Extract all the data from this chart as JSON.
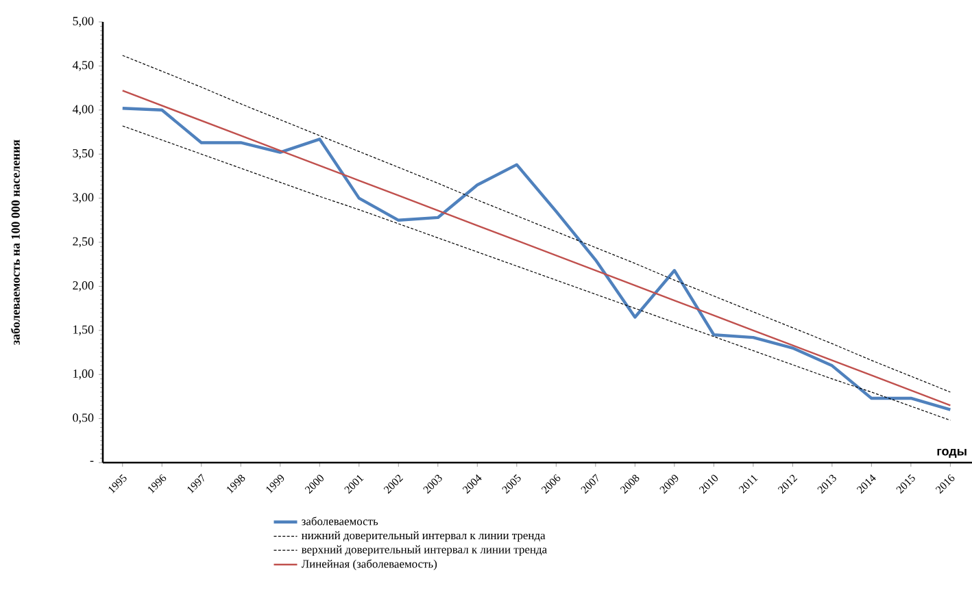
{
  "chart_data": {
    "type": "line",
    "ylabel": "заболеваемость на 100 000 населения",
    "xlabel": "годы",
    "categories": [
      "1995",
      "1996",
      "1997",
      "1998",
      "1999",
      "2000",
      "2001",
      "2002",
      "2003",
      "2004",
      "2005",
      "2006",
      "2007",
      "2008",
      "2009",
      "2010",
      "2011",
      "2012",
      "2013",
      "2014",
      "2015",
      "2016"
    ],
    "ylim": [
      0,
      5
    ],
    "yticks": [
      {
        "value": 0,
        "label": "-"
      },
      {
        "value": 0.5,
        "label": "0,50"
      },
      {
        "value": 1,
        "label": "1,00"
      },
      {
        "value": 1.5,
        "label": "1,50"
      },
      {
        "value": 2,
        "label": "2,00"
      },
      {
        "value": 2.5,
        "label": "2,50"
      },
      {
        "value": 3,
        "label": "3,00"
      },
      {
        "value": 3.5,
        "label": "3,50"
      },
      {
        "value": 4,
        "label": "4,00"
      },
      {
        "value": 4.5,
        "label": "4,50"
      },
      {
        "value": 5,
        "label": "5,00"
      }
    ],
    "series": [
      {
        "name": "заболеваемость",
        "color": "#4f81bd",
        "line_style": "solid",
        "values": [
          4.02,
          4.0,
          3.63,
          3.63,
          3.52,
          3.67,
          3.0,
          2.75,
          2.78,
          3.15,
          3.38,
          2.85,
          2.3,
          1.65,
          2.18,
          1.45,
          1.42,
          1.3,
          1.1,
          0.73,
          0.73,
          0.6
        ]
      },
      {
        "name": "нижний доверительный интервал к линии тренда",
        "type": "line",
        "color": "#000000",
        "line_style": "dashed",
        "values": [
          3.82,
          3.66,
          3.5,
          3.34,
          3.18,
          3.02,
          2.87,
          2.71,
          2.55,
          2.39,
          2.23,
          2.07,
          1.91,
          1.75,
          1.59,
          1.43,
          1.27,
          1.11,
          0.95,
          0.8,
          0.64,
          0.48
        ]
      },
      {
        "name": "верхний доверительный интервал к линии тренда",
        "type": "line",
        "color": "#000000",
        "line_style": "dashed",
        "values": [
          4.62,
          4.44,
          4.26,
          4.07,
          3.89,
          3.71,
          3.53,
          3.35,
          3.17,
          2.98,
          2.8,
          2.62,
          2.44,
          2.26,
          2.07,
          1.89,
          1.71,
          1.53,
          1.35,
          1.16,
          0.98,
          0.8
        ]
      },
      {
        "name": "Линейная (заболеваемость)",
        "type": "line",
        "color": "#c0504d",
        "line_style": "solid",
        "values": [
          4.22,
          4.05,
          3.88,
          3.71,
          3.54,
          3.37,
          3.2,
          3.03,
          2.86,
          2.69,
          2.52,
          2.35,
          2.18,
          2.01,
          1.84,
          1.67,
          1.5,
          1.33,
          1.16,
          0.99,
          0.82,
          0.65
        ]
      }
    ],
    "grid": false,
    "legend": "bottom",
    "marker": "none"
  }
}
